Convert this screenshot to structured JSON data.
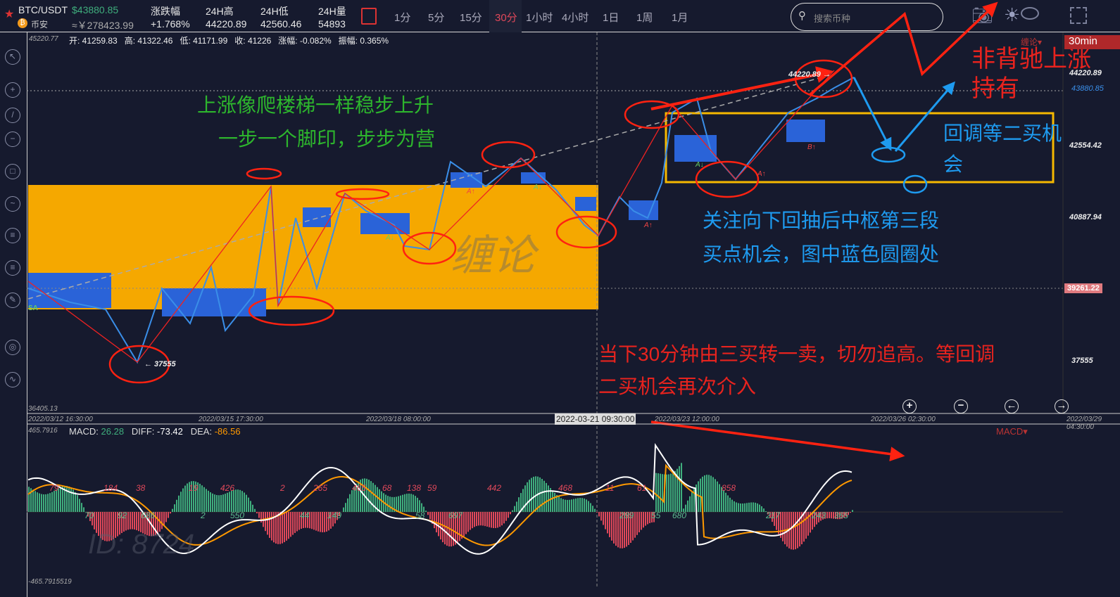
{
  "header": {
    "symbol": "BTC/USDT",
    "price": "$43880.85",
    "exchange": "币安",
    "cny_price": "≈￥278423.99",
    "stats": [
      {
        "label": "涨跌幅",
        "value": "+1.768%"
      },
      {
        "label": "24H高",
        "value": "44220.89"
      },
      {
        "label": "24H低",
        "value": "42560.46"
      },
      {
        "label": "24H量",
        "value": "54893"
      }
    ],
    "timeframes": [
      "1分",
      "5分",
      "15分",
      "30分",
      "1小时",
      "4小时",
      "1日",
      "1周",
      "1月"
    ],
    "active_timeframe": "30分",
    "search_placeholder": "搜索币种"
  },
  "ohlc": {
    "top_value": "45220.77",
    "text": "开: 41259.83   高: 41322.46   低: 41171.99   收: 41226   涨幅: -0.082%   振幅: 0.365%"
  },
  "indicator_label": "缠论▾",
  "period_badge": "30min",
  "price_axis": {
    "high_label": "44220.89",
    "current": "43880.85",
    "ticks": [
      "42554.42",
      "40887.94",
      "37555"
    ],
    "marked": "39261.22",
    "bottom": "36405.13",
    "low_label": "← 37555",
    "peak_label": "44220.89 →"
  },
  "time_axis": [
    "2022/03/12 16:30:00",
    "2022/03/15 17:30:00",
    "2022/03/18 08:00:00",
    "2022/03/23 12:00:00",
    "2022/03/26 02:30:00",
    "2022/03/29 04:30:00"
  ],
  "crosshair_time": "2022-03-21 09:30:00",
  "signals": [
    "SA",
    "A↓",
    "A↑",
    "A↓",
    "A↑",
    "A↑",
    "A↓",
    "A↑",
    "B↑"
  ],
  "annotations": {
    "green1": "上涨像爬楼梯一样稳步上升",
    "green2": "一步一个脚印，步步为营",
    "blue1": "关注向下回抽后中枢第三段",
    "blue2": "买点机会，图中蓝色圆圈处",
    "red1": "当下30分钟由三买转一卖，切勿追高。等回调",
    "red2": "二买机会再次介入",
    "red3": "非背驰上涨",
    "red4": "持有",
    "blue3": "回调等二买机",
    "blue4": "会"
  },
  "watermark": "缠论",
  "id_watermark": "ID: 8724",
  "macd": {
    "top": "465.7916",
    "bottom": "-465.7915519",
    "macd_label": "MACD:",
    "macd_value": "26.28",
    "diff_label": "DIFF:",
    "diff_value": "-73.42",
    "dea_label": "DEA:",
    "dea_value": "-86.56",
    "menu": "MACD▾",
    "upper_labels": [
      "79",
      "184",
      "38",
      "19",
      "426",
      "2",
      "265",
      "465",
      "68",
      "138",
      "59",
      "442",
      "468",
      "11",
      "61",
      "858"
    ],
    "lower_labels": [
      "70",
      "92",
      "686",
      "2",
      "550",
      "44",
      "149",
      "58",
      "697",
      "289",
      "55",
      "680",
      "217",
      "243",
      "365"
    ]
  },
  "colors": {
    "bg": "#161a2e",
    "up": "#3fae7d",
    "down": "#e0485a",
    "box": "#f5a800",
    "accent_red": "#e8231e",
    "blue": "#1e9bf0",
    "green": "#2db52d"
  }
}
